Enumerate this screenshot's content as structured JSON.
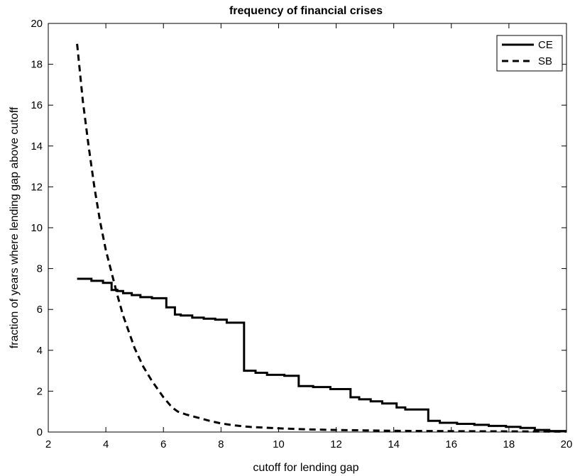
{
  "chart_data": {
    "type": "line",
    "title": "frequency of financial crises",
    "xlabel": "cutoff for lending gap",
    "ylabel": "fraction of years where lending gap above cutoff",
    "xlim": [
      2,
      20
    ],
    "ylim": [
      0,
      20
    ],
    "xticks": [
      2,
      4,
      6,
      8,
      10,
      12,
      14,
      16,
      18,
      20
    ],
    "yticks": [
      0,
      2,
      4,
      6,
      8,
      10,
      12,
      14,
      16,
      18,
      20
    ],
    "grid": false,
    "legend_position": "top-right",
    "series": [
      {
        "name": "CE",
        "style": "solid",
        "color": "#000000",
        "x": [
          3.0,
          3.5,
          3.5,
          3.9,
          3.9,
          4.2,
          4.2,
          4.4,
          4.4,
          4.6,
          4.6,
          4.9,
          4.9,
          5.2,
          5.2,
          5.6,
          5.6,
          6.1,
          6.1,
          6.4,
          6.4,
          6.6,
          6.6,
          7.0,
          7.0,
          7.4,
          7.4,
          7.8,
          7.8,
          8.2,
          8.2,
          8.8,
          8.8,
          9.2,
          9.2,
          9.6,
          9.6,
          10.2,
          10.2,
          10.7,
          10.7,
          11.2,
          11.2,
          11.8,
          11.8,
          12.5,
          12.5,
          12.8,
          12.8,
          13.2,
          13.2,
          13.6,
          13.6,
          14.1,
          14.1,
          14.4,
          14.4,
          15.2,
          15.2,
          15.6,
          15.6,
          16.2,
          16.2,
          16.8,
          16.8,
          17.3,
          17.3,
          17.9,
          17.9,
          18.4,
          18.4,
          18.9,
          18.9,
          19.4,
          19.4,
          20.0
        ],
        "y": [
          7.5,
          7.5,
          7.4,
          7.4,
          7.3,
          7.3,
          6.95,
          6.95,
          6.9,
          6.9,
          6.8,
          6.8,
          6.7,
          6.7,
          6.6,
          6.6,
          6.55,
          6.55,
          6.1,
          6.1,
          5.75,
          5.75,
          5.7,
          5.7,
          5.6,
          5.6,
          5.55,
          5.55,
          5.5,
          5.5,
          5.35,
          5.35,
          3.0,
          3.0,
          2.9,
          2.9,
          2.8,
          2.8,
          2.75,
          2.75,
          2.25,
          2.25,
          2.2,
          2.2,
          2.1,
          2.1,
          1.7,
          1.7,
          1.6,
          1.6,
          1.5,
          1.5,
          1.4,
          1.4,
          1.2,
          1.2,
          1.1,
          1.1,
          0.55,
          0.55,
          0.45,
          0.45,
          0.4,
          0.4,
          0.35,
          0.35,
          0.3,
          0.3,
          0.25,
          0.25,
          0.2,
          0.2,
          0.1,
          0.1,
          0.05,
          0.05
        ]
      },
      {
        "name": "SB",
        "style": "dashed",
        "color": "#000000",
        "x": [
          3.0,
          3.2,
          3.4,
          3.6,
          3.8,
          4.0,
          4.2,
          4.4,
          4.6,
          4.8,
          5.0,
          5.3,
          5.6,
          6.0,
          6.3,
          6.5,
          6.8,
          7.2,
          7.6,
          8.0,
          8.5,
          9.0,
          10.0,
          11.0,
          12.0,
          13.0,
          14.0,
          16.0,
          18.0,
          20.0
        ],
        "y": [
          19.0,
          16.2,
          14.0,
          12.0,
          10.3,
          8.9,
          7.8,
          6.7,
          5.7,
          4.9,
          4.1,
          3.2,
          2.5,
          1.7,
          1.2,
          1.0,
          0.85,
          0.7,
          0.55,
          0.42,
          0.32,
          0.25,
          0.18,
          0.13,
          0.1,
          0.08,
          0.06,
          0.04,
          0.03,
          0.02
        ]
      }
    ]
  }
}
